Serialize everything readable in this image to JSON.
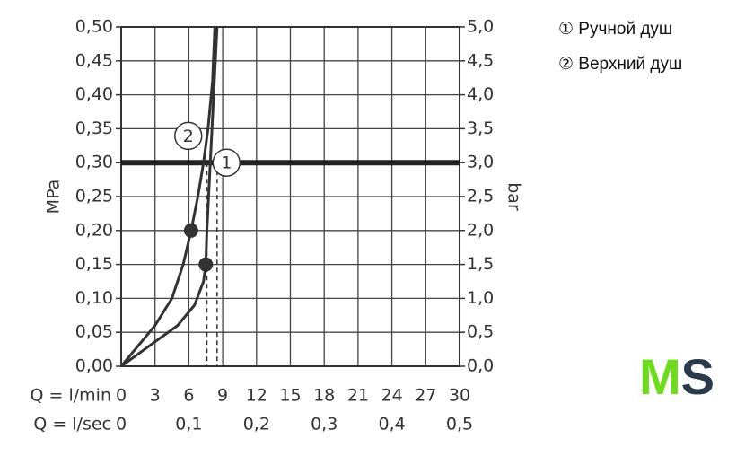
{
  "chart_data": {
    "type": "line",
    "y_label": "MPa",
    "y2_label": "bar",
    "x_label": "Q = l/min",
    "x2_label": "Q = l/sec",
    "xlim": [
      0,
      30
    ],
    "xticks": [
      0,
      3,
      6,
      9,
      12,
      15,
      18,
      21,
      24,
      27,
      30
    ],
    "x2lim": [
      0,
      0.5
    ],
    "x2ticks": [
      0,
      {
        "value": 0.1,
        "label": "0,1"
      },
      {
        "value": 0.2,
        "label": "0,2"
      },
      {
        "value": 0.3,
        "label": "0,3"
      },
      {
        "value": 0.4,
        "label": "0,4"
      },
      {
        "value": 0.5,
        "label": "0,5"
      }
    ],
    "ylim": [
      0,
      0.5
    ],
    "yticks": [
      {
        "value": 0,
        "label": "0,00"
      },
      {
        "value": 0.05,
        "label": "0,05"
      },
      {
        "value": 0.1,
        "label": "0,10"
      },
      {
        "value": 0.15,
        "label": "0,15"
      },
      {
        "value": 0.2,
        "label": "0,20"
      },
      {
        "value": 0.25,
        "label": "0,25"
      },
      {
        "value": 0.3,
        "label": "0,30"
      },
      {
        "value": 0.35,
        "label": "0,35"
      },
      {
        "value": 0.4,
        "label": "0,40"
      },
      {
        "value": 0.45,
        "label": "0,45"
      },
      {
        "value": 0.5,
        "label": "0,50"
      }
    ],
    "y2lim": [
      0,
      5
    ],
    "y2ticks": [
      {
        "value": 0,
        "label": "0,0"
      },
      {
        "value": 0.5,
        "label": "0,5"
      },
      {
        "value": 1,
        "label": "1,0"
      },
      {
        "value": 1.5,
        "label": "1,5"
      },
      {
        "value": 2,
        "label": "2,0"
      },
      {
        "value": 2.5,
        "label": "2,5"
      },
      {
        "value": 3,
        "label": "3,0"
      },
      {
        "value": 3.5,
        "label": "3,5"
      },
      {
        "value": 4,
        "label": "4,0"
      },
      {
        "value": 4.5,
        "label": "4,5"
      },
      {
        "value": 5,
        "label": "5,0"
      }
    ],
    "grid": true,
    "highlight_y": 0.3,
    "reference_x": [
      7.6,
      8.5
    ],
    "series": [
      {
        "name": "① Ручной душ",
        "curve_label": "1",
        "color": "#333333",
        "x": [
          0,
          2.5,
          5,
          6.5,
          7.3,
          7.5,
          7.6,
          7.9,
          8.2,
          8.5
        ],
        "values": [
          0,
          0.03,
          0.06,
          0.09,
          0.125,
          0.15,
          0.2,
          0.3,
          0.4,
          0.5
        ],
        "marker": [
          7.5,
          0.15
        ]
      },
      {
        "name": "② Верхний душ",
        "curve_label": "2",
        "color": "#333333",
        "x": [
          0,
          1.5,
          3,
          4.5,
          5.5,
          6.2,
          6.8,
          7.3,
          7.7,
          8.1,
          8.3
        ],
        "values": [
          0,
          0.03,
          0.06,
          0.1,
          0.15,
          0.2,
          0.25,
          0.3,
          0.35,
          0.42,
          0.5
        ],
        "marker": [
          6.2,
          0.2
        ]
      }
    ],
    "logo": [
      "M",
      "S"
    ]
  }
}
